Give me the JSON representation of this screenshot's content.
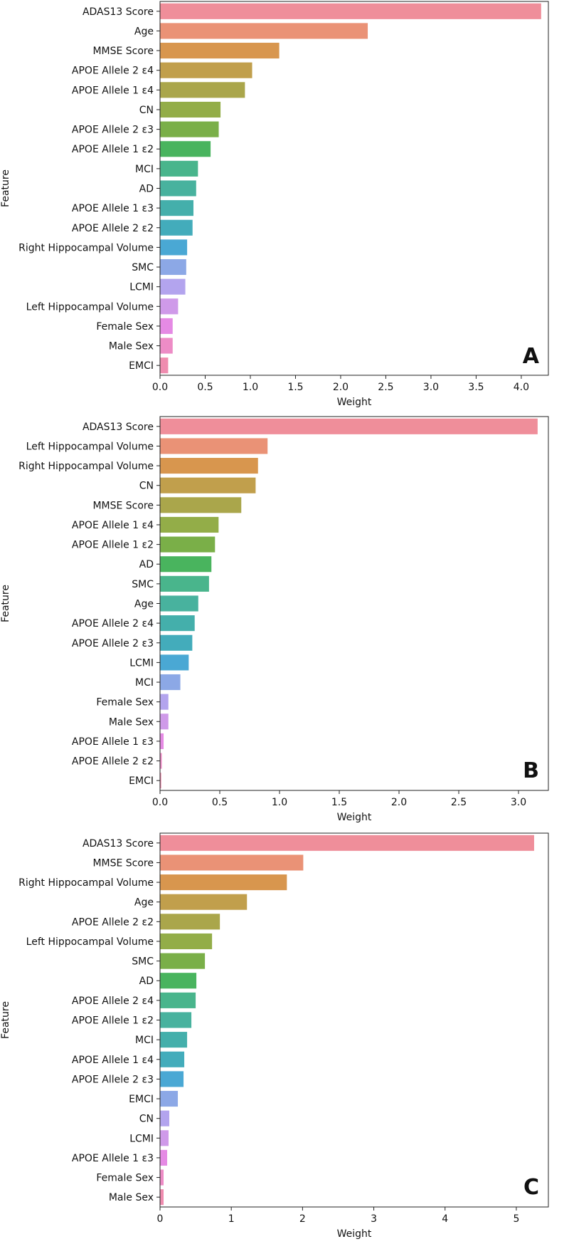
{
  "chart_data": [
    {
      "type": "bar",
      "orientation": "horizontal",
      "panel_label": "A",
      "xlabel": "Weight",
      "ylabel": "Feature",
      "xlim": [
        0,
        4.3
      ],
      "xticks": [
        "0.0",
        "0.5",
        "1.0",
        "1.5",
        "2.0",
        "2.5",
        "3.0",
        "3.5",
        "4.0"
      ],
      "categories": [
        "ADAS13 Score",
        "Age",
        "MMSE Score",
        "APOE Allele 2 ε4",
        "APOE Allele 1 ε4",
        "CN",
        "APOE Allele 2 ε3",
        "APOE Allele 1 ε2",
        "MCI",
        "AD",
        "APOE Allele 1 ε3",
        "APOE Allele 2 ε2",
        "Right Hippocampal Volume",
        "SMC",
        "LCMI",
        "Left Hippocampal Volume",
        "Female Sex",
        "Male Sex",
        "EMCI"
      ],
      "values": [
        4.22,
        2.3,
        1.32,
        1.02,
        0.94,
        0.67,
        0.65,
        0.56,
        0.42,
        0.4,
        0.37,
        0.36,
        0.3,
        0.29,
        0.28,
        0.2,
        0.14,
        0.14,
        0.09
      ]
    },
    {
      "type": "bar",
      "orientation": "horizontal",
      "panel_label": "B",
      "xlabel": "Weight",
      "ylabel": "Feature",
      "xlim": [
        0,
        3.25
      ],
      "xticks": [
        "0.0",
        "0.5",
        "1.0",
        "1.5",
        "2.0",
        "2.5",
        "3.0"
      ],
      "categories": [
        "ADAS13 Score",
        "Left Hippocampal Volume",
        "Right Hippocampal Volume",
        "CN",
        "MMSE Score",
        "APOE Allele 1 ε4",
        "APOE Allele 1 ε2",
        "AD",
        "SMC",
        "Age",
        "APOE Allele 2 ε4",
        "APOE Allele 2 ε3",
        "LCMI",
        "MCI",
        "Female Sex",
        "Male Sex",
        "APOE Allele 1 ε3",
        "APOE Allele 2 ε2",
        "EMCI"
      ],
      "values": [
        3.16,
        0.9,
        0.82,
        0.8,
        0.68,
        0.49,
        0.46,
        0.43,
        0.41,
        0.32,
        0.29,
        0.27,
        0.24,
        0.17,
        0.07,
        0.07,
        0.03,
        0.015,
        0.01
      ]
    },
    {
      "type": "bar",
      "orientation": "horizontal",
      "panel_label": "C",
      "xlabel": "Weight",
      "ylabel": "Feature",
      "xlim": [
        0,
        5.45
      ],
      "xticks": [
        "0",
        "1",
        "2",
        "3",
        "4",
        "5"
      ],
      "categories": [
        "ADAS13 Score",
        "MMSE Score",
        "Right Hippocampal Volume",
        "Age",
        "APOE Allele 2 ε2",
        "Left Hippocampal Volume",
        "SMC",
        "AD",
        "APOE Allele 2 ε4",
        "APOE Allele 1 ε2",
        "MCI",
        "APOE Allele 1 ε4",
        "APOE Allele 2 ε3",
        "EMCI",
        "CN",
        "LCMI",
        "APOE Allele 1 ε3",
        "Female Sex",
        "Male Sex"
      ],
      "values": [
        5.25,
        2.01,
        1.78,
        1.22,
        0.84,
        0.73,
        0.63,
        0.51,
        0.5,
        0.44,
        0.38,
        0.34,
        0.33,
        0.25,
        0.13,
        0.12,
        0.1,
        0.05,
        0.05
      ]
    }
  ]
}
